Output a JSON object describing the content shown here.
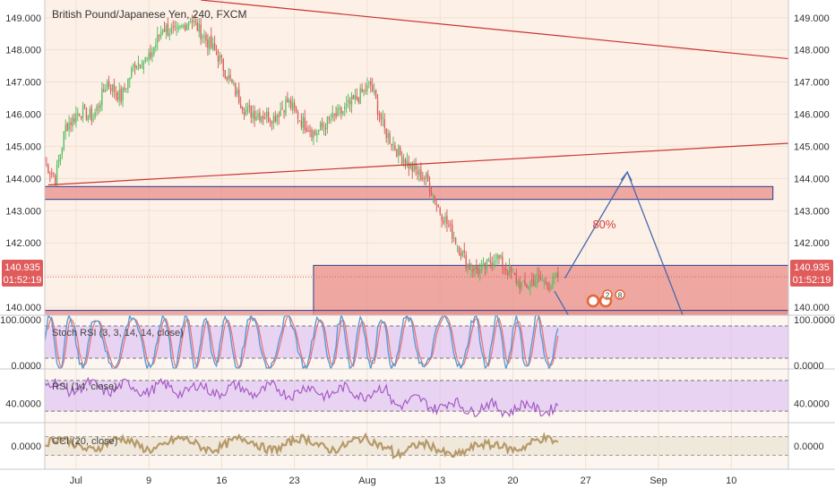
{
  "chart_title": "British Pound/Japanese Yen, 240, FXCM",
  "colors": {
    "background": "#fdf1e7",
    "up": "#5bbf67",
    "down": "#d95f5f",
    "zone_fill": "#e88f8a",
    "zone_border": "#2c3a8f",
    "trendline": "#cc3333",
    "projection": "#4a68b0",
    "price_tag": "#e05c5c",
    "stoch_k": "#5b9bd5",
    "stoch_d": "#e86f6f",
    "rsi": "#a45cc4",
    "cci": "#b59a6a"
  },
  "price_tag": {
    "price": "140.935",
    "countdown": "01:52:19"
  },
  "annotation_text": "80%",
  "chart_data": {
    "type": "candlestick",
    "title": "British Pound/Japanese Yen, 240, FXCM",
    "x_tick_labels": [
      "Jul",
      "9",
      "16",
      "23",
      "Aug",
      "13",
      "20",
      "27",
      "Sep",
      "10"
    ],
    "main": {
      "y_ticks": [
        "149.000",
        "148.000",
        "147.000",
        "146.000",
        "145.000",
        "144.000",
        "143.000",
        "142.000",
        "141.000",
        "140.000"
      ],
      "ylim": [
        139.75,
        149.55
      ],
      "last_price": 140.935,
      "waypoints": [
        [
          0,
          144.5
        ],
        [
          6,
          144.0
        ],
        [
          12,
          145.6
        ],
        [
          20,
          146.1
        ],
        [
          28,
          145.9
        ],
        [
          36,
          147.0
        ],
        [
          44,
          146.5
        ],
        [
          52,
          147.6
        ],
        [
          60,
          147.7
        ],
        [
          68,
          148.7
        ],
        [
          76,
          148.5
        ],
        [
          84,
          149.0
        ],
        [
          92,
          148.4
        ],
        [
          100,
          147.8
        ],
        [
          108,
          146.9
        ],
        [
          116,
          146.1
        ],
        [
          124,
          146.0
        ],
        [
          132,
          145.9
        ],
        [
          140,
          146.4
        ],
        [
          148,
          145.8
        ],
        [
          156,
          145.4
        ],
        [
          164,
          145.8
        ],
        [
          172,
          146.1
        ],
        [
          180,
          146.5
        ],
        [
          188,
          146.9
        ],
        [
          196,
          145.5
        ],
        [
          204,
          144.8
        ],
        [
          212,
          144.3
        ],
        [
          220,
          144.0
        ],
        [
          228,
          143.0
        ],
        [
          236,
          142.2
        ],
        [
          244,
          141.3
        ],
        [
          252,
          141.1
        ],
        [
          260,
          141.6
        ],
        [
          268,
          141.1
        ],
        [
          276,
          140.6
        ],
        [
          284,
          140.9
        ],
        [
          292,
          140.7
        ],
        [
          296,
          140.9
        ]
      ],
      "zones": [
        {
          "x0": 0,
          "x1": 420,
          "y_top": 143.75,
          "y_bottom": 143.35
        },
        {
          "x0": 155,
          "x1": 480,
          "y_top": 141.3,
          "y_bottom": 139.75
        },
        {
          "x0": 0,
          "x1": 480,
          "y_top": 139.9,
          "y_bottom": 139.75
        }
      ],
      "trendlines": [
        {
          "x0": 90,
          "y0": 149.55,
          "x1": 480,
          "y1": 147.45
        },
        {
          "x0": 2,
          "y0": 143.8,
          "x1": 480,
          "y1": 145.25
        }
      ],
      "projection": [
        [
          300,
          140.9
        ],
        [
          336,
          144.2
        ],
        [
          368,
          139.75
        ]
      ],
      "projection_arrow_tip": [
        336,
        144.2
      ],
      "projection_short": [
        [
          294,
          140.5
        ],
        [
          302,
          139.75
        ]
      ],
      "annotation_at": [
        316,
        142.45
      ]
    },
    "stoch_rsi": {
      "label": "Stoch RSI (3, 3, 14, 14, close)",
      "y_ticks": [
        "100.0000",
        "0.0000"
      ],
      "ylim": [
        0,
        100
      ],
      "bands": [
        80,
        20
      ]
    },
    "rsi": {
      "label": "RSI (14, close)",
      "y_ticks": [
        "40.0000"
      ],
      "ylim": [
        15,
        85
      ],
      "bands": [
        70,
        30
      ]
    },
    "cci": {
      "label": "CCI (20, close)",
      "y_ticks": [
        "0.0000"
      ],
      "ylim": [
        -250,
        250
      ],
      "bands": [
        100,
        -100
      ]
    }
  }
}
